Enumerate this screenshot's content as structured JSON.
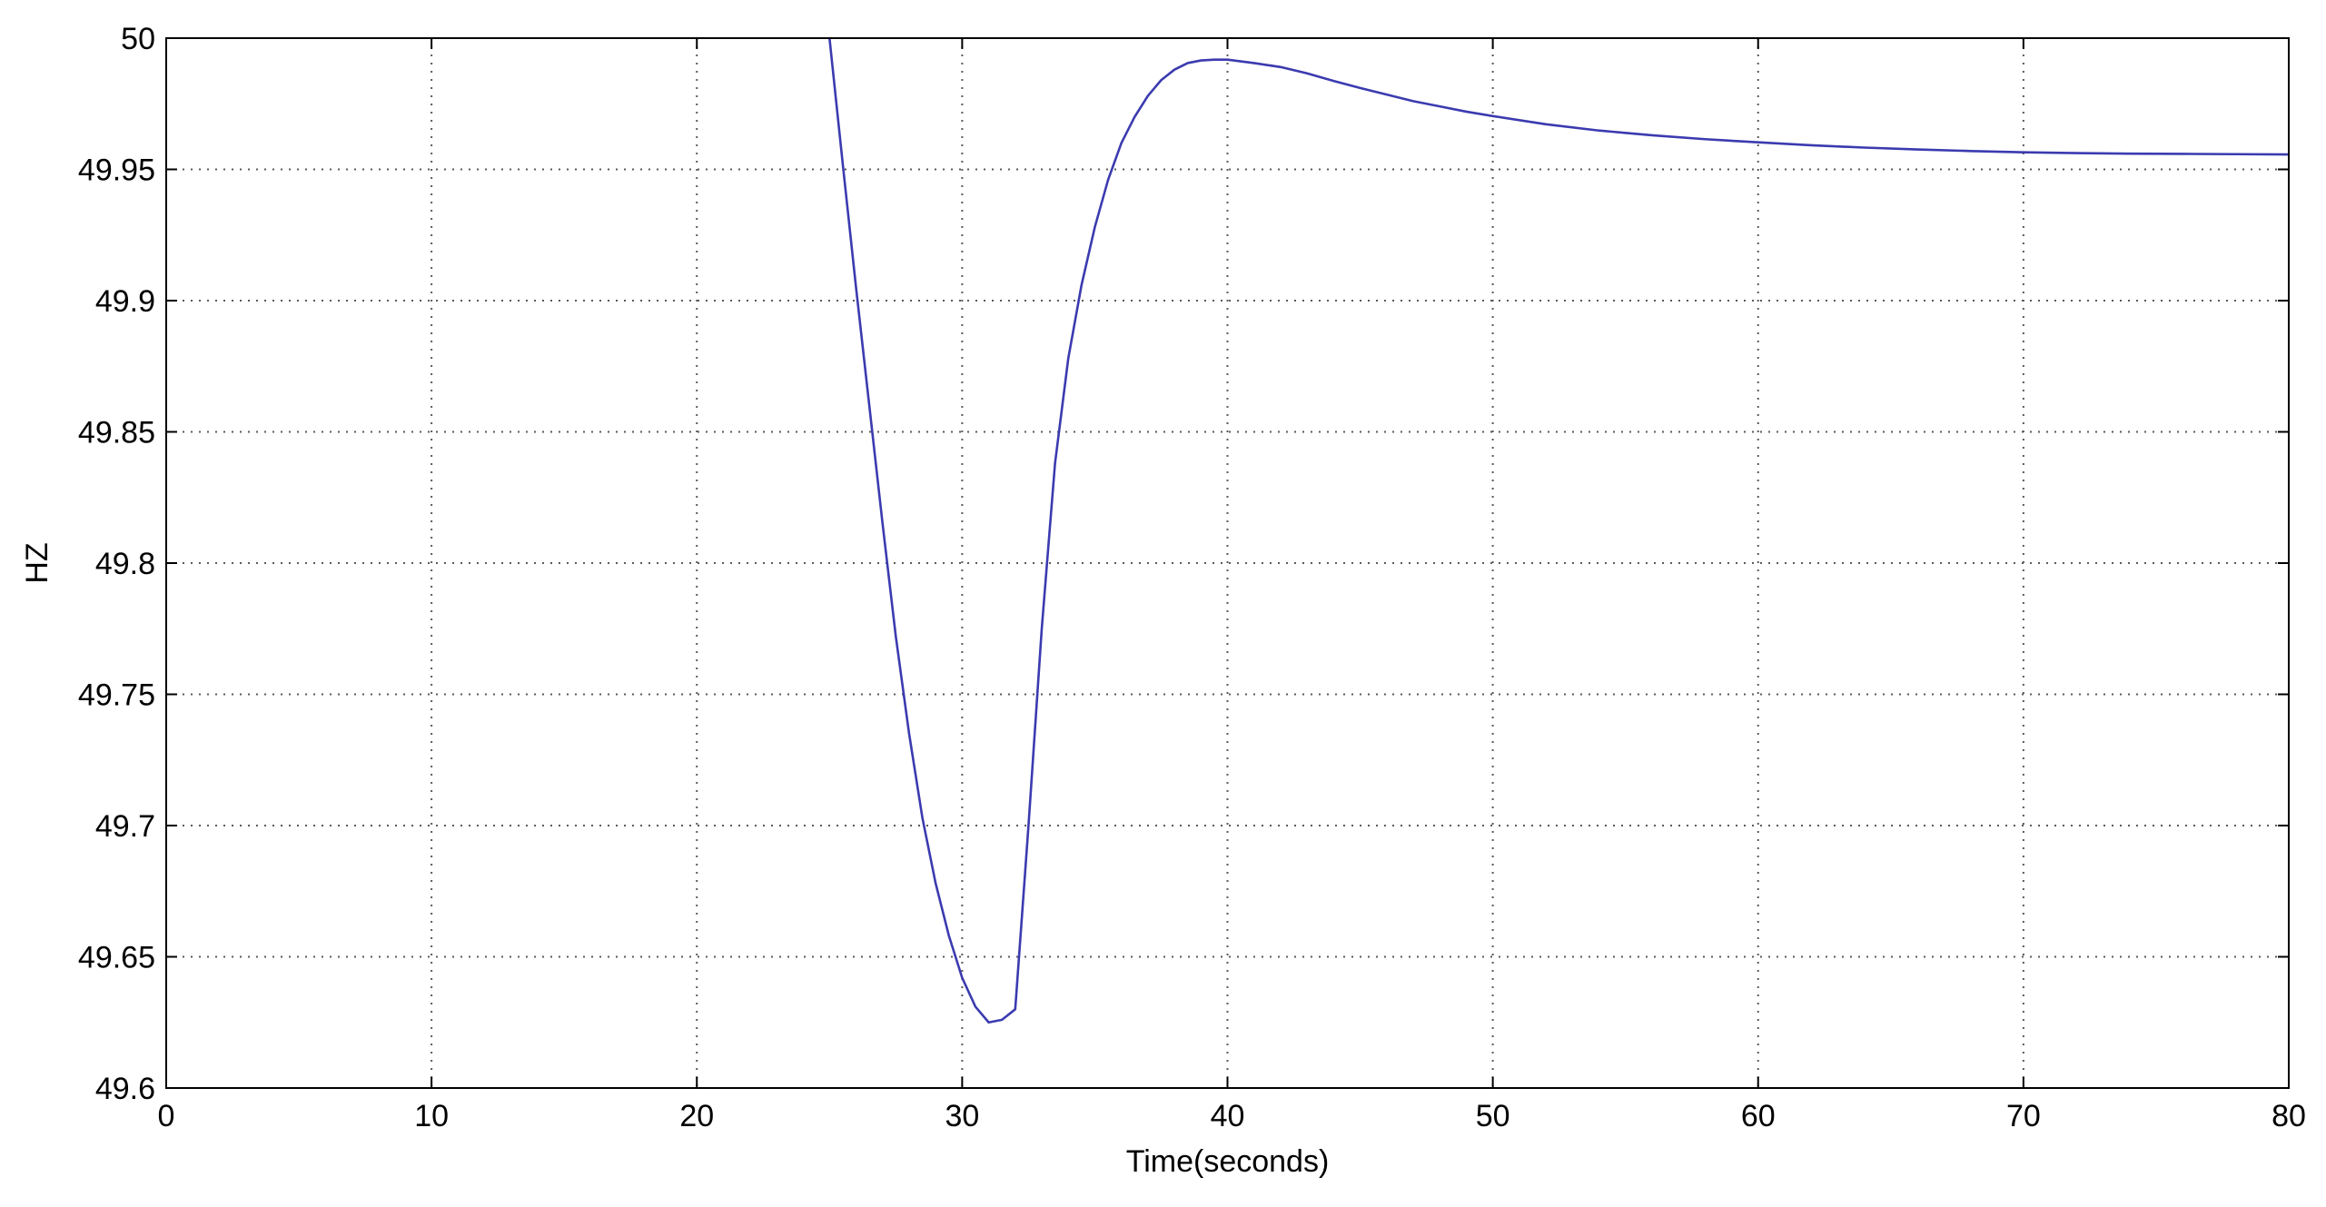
{
  "chart_data": {
    "type": "line",
    "title": "",
    "xlabel": "Time(seconds)",
    "ylabel": "HZ",
    "xlim": [
      0,
      80
    ],
    "ylim": [
      49.6,
      50
    ],
    "x_ticks": [
      0,
      10,
      20,
      30,
      40,
      50,
      60,
      70,
      80
    ],
    "x_tick_labels": [
      "0",
      "10",
      "20",
      "30",
      "40",
      "50",
      "60",
      "70",
      "80"
    ],
    "y_ticks": [
      49.6,
      49.65,
      49.7,
      49.75,
      49.8,
      49.85,
      49.9,
      49.95,
      50
    ],
    "y_tick_labels": [
      "49.6",
      "49.65",
      "49.7",
      "49.75",
      "49.8",
      "49.85",
      "49.9",
      "49.95",
      "50"
    ],
    "grid": true,
    "grid_style": "dotted",
    "legend": "none",
    "line_color": "#3b3bb0",
    "series": [
      {
        "x": [
          25.0,
          25.5,
          26.0,
          26.5,
          27.0,
          27.5,
          28.0,
          28.5,
          29.0,
          29.5,
          30.0,
          30.5,
          31.0,
          31.5,
          32.0,
          32.5,
          33.0,
          33.5,
          34.0,
          34.5,
          35.0,
          35.5,
          36.0,
          36.5,
          37.0,
          37.5,
          38.0,
          38.5,
          39.0,
          39.5,
          40.0,
          41.0,
          42.0,
          43.0,
          44.0,
          45.0,
          46.0,
          47.0,
          48.0,
          49.0,
          50.0,
          52.0,
          54.0,
          56.0,
          58.0,
          60.0,
          62.0,
          64.0,
          66.0,
          68.0,
          70.0,
          72.0,
          74.0,
          76.0,
          78.0,
          80.0
        ],
        "y": [
          50.0,
          49.952,
          49.905,
          49.86,
          49.815,
          49.772,
          49.735,
          49.703,
          49.678,
          49.658,
          49.642,
          49.631,
          49.625,
          49.626,
          49.63,
          49.7,
          49.775,
          49.838,
          49.878,
          49.906,
          49.928,
          49.946,
          49.96,
          49.97,
          49.978,
          49.984,
          49.988,
          49.9905,
          49.9915,
          49.9918,
          49.9918,
          49.9905,
          49.989,
          49.9866,
          49.9837,
          49.981,
          49.9785,
          49.976,
          49.974,
          49.972,
          49.9703,
          49.9672,
          49.9648,
          49.963,
          49.9615,
          49.9603,
          49.9592,
          49.9583,
          49.9576,
          49.957,
          49.9565,
          49.9562,
          49.956,
          49.9559,
          49.9558,
          49.9557
        ]
      }
    ]
  }
}
